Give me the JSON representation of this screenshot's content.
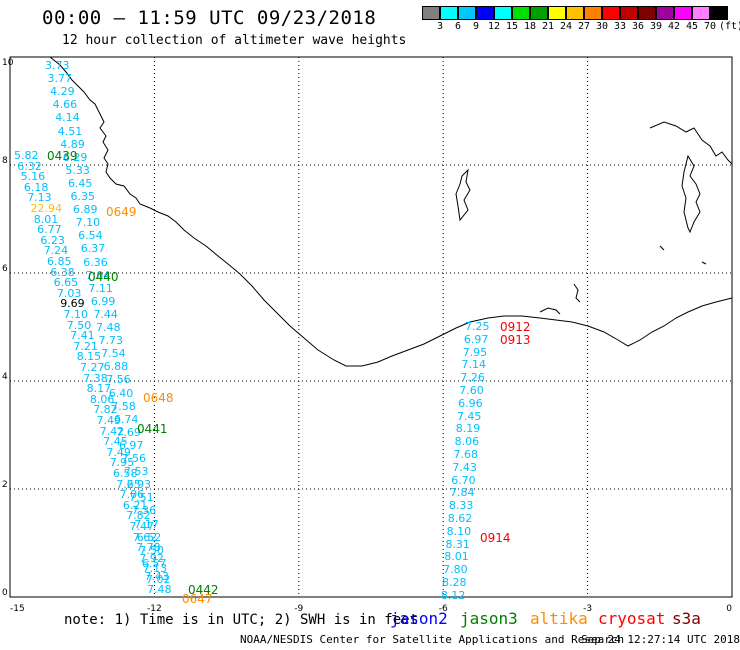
{
  "title": "00:00 – 11:59 UTC 09/23/2018",
  "subtitle": "12 hour collection of altimeter wave heights",
  "colorbar": {
    "colors": [
      "#808080",
      "#00ffff",
      "#00c8ff",
      "#0000ff",
      "#00ffff",
      "#00e000",
      "#00a000",
      "#ffff00",
      "#ffc000",
      "#ff8000",
      "#ff0000",
      "#c00000",
      "#800000",
      "#a000a0",
      "#ff00ff",
      "#ff80ff",
      "#000000"
    ],
    "labels": [
      "3",
      "6",
      "9",
      "12",
      "15",
      "18",
      "21",
      "24",
      "27",
      "30",
      "33",
      "36",
      "39",
      "42",
      "45",
      "70",
      "(ft)"
    ]
  },
  "axis": {
    "x_ticks": [
      "-15",
      "-12",
      "-9",
      "-6",
      "-3",
      "0"
    ],
    "y_ticks": [
      "0",
      "2",
      "4",
      "6",
      "8",
      "10"
    ]
  },
  "tracks": [
    {
      "values": [
        "3.73",
        "3.77",
        "4.29",
        "4.66",
        "4.14",
        "4.51",
        "4.89",
        "6.29",
        "5.33",
        "6.45",
        "6.35",
        "6.89",
        "7.10",
        "6.54",
        "6.37",
        "6.36",
        "7.04",
        "7.11",
        "6.99",
        "7.44",
        "7.48",
        "7.73",
        "7.54",
        "6.88",
        "7.56",
        "6.40",
        "7.58",
        "6.74",
        "7.69",
        "6.97",
        "7.56",
        "7.53",
        "6.93",
        "7.51",
        "7.36",
        "7.17",
        "6.52",
        "7.50",
        "6.57",
        "7.43",
        "7.48"
      ]
    },
    {
      "values": [
        "5.82",
        "6.32",
        "5.16",
        "6.18",
        "7.13",
        "22.94",
        "8.01",
        "6.77",
        "6.23",
        "7.24",
        "6.85",
        "6.38",
        "6.65",
        "7.03",
        "9.69",
        "7.10",
        "7.50",
        "7.41",
        "7.21",
        "8.15",
        "7.27",
        "7.38",
        "8.17",
        "8.06",
        "7.82",
        "7.49",
        "7.42",
        "7.45",
        "7.49",
        "7.95",
        "6.58",
        "7.25",
        "7.06",
        "6.21",
        "7.82",
        "7.47",
        "7.62",
        "7.78",
        "7.92",
        "7.13",
        "7.02"
      ]
    },
    {
      "values": [
        "7.25",
        "6.97",
        "7.95",
        "7.14",
        "7.26",
        "7.60",
        "6.96",
        "7.45",
        "8.19",
        "8.06",
        "7.68",
        "7.43",
        "6.70",
        "7.84",
        "8.33",
        "8.62",
        "8.10",
        "8.31",
        "8.01",
        "7.80",
        "8.28",
        "8.12"
      ]
    }
  ],
  "time_labels": [
    {
      "text": "0439",
      "sat": "jason3"
    },
    {
      "text": "0649",
      "sat": "altika"
    },
    {
      "text": "0440",
      "sat": "jason3"
    },
    {
      "text": "0912",
      "sat": "cryosat"
    },
    {
      "text": "0913",
      "sat": "cryosat"
    },
    {
      "text": "0648",
      "sat": "altika"
    },
    {
      "text": "0441",
      "sat": "jason3"
    },
    {
      "text": "0914",
      "sat": "cryosat"
    },
    {
      "text": "0442",
      "sat": "jason3"
    },
    {
      "text": "0647",
      "sat": "altika"
    }
  ],
  "note": "note: 1) Time is in UTC; 2) SWH is in feet",
  "legend": [
    {
      "label": "jason2",
      "color": "#0000ff"
    },
    {
      "label": "jason3",
      "color": "#008000"
    },
    {
      "label": "altika",
      "color": "#ff8c00"
    },
    {
      "label": "cryosat",
      "color": "#ff0000"
    },
    {
      "label": "s3a",
      "color": "#800000"
    }
  ],
  "credit": "NOAA/NESDIS Center for Satellite Applications and Research",
  "timestamp": "Sep 24 12:27:14 UTC 2018",
  "colors": {
    "swh_low": "#00bfff",
    "swh_mid": "#00a0e0",
    "swh_high": "#000000",
    "swh_extreme": "#ffc000"
  }
}
